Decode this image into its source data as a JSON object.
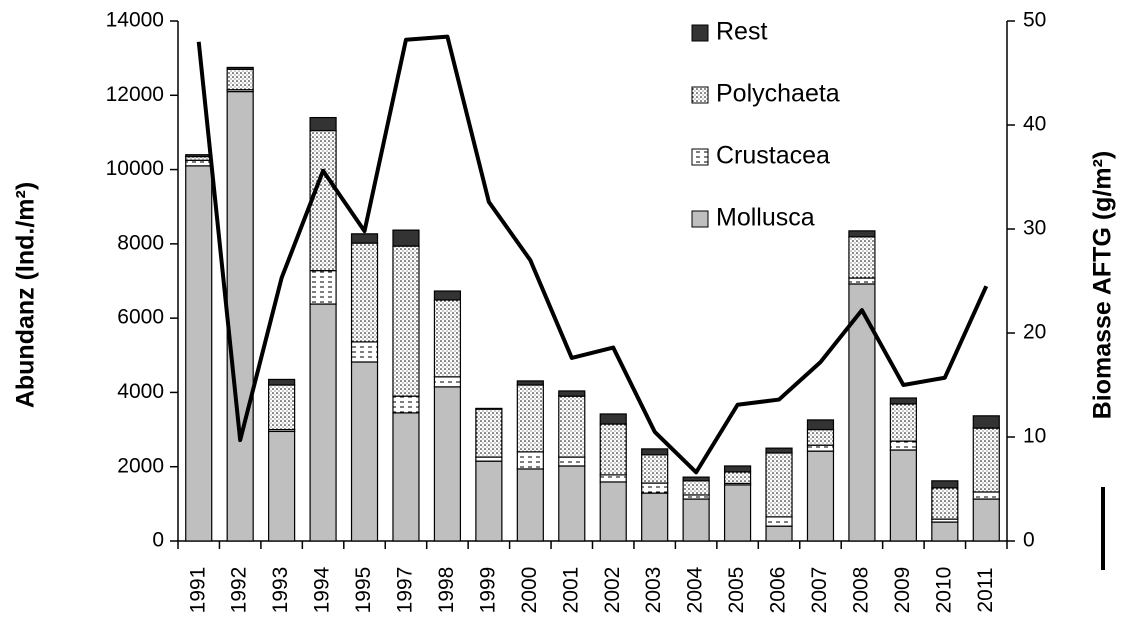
{
  "chart_data": {
    "type": "bar",
    "stacked": true,
    "categories": [
      "1991",
      "1992",
      "1993",
      "1994",
      "1995",
      "1997",
      "1998",
      "1999",
      "2000",
      "2001",
      "2002",
      "2003",
      "2004",
      "2005",
      "2006",
      "2007",
      "2008",
      "2009",
      "2010",
      "2011"
    ],
    "series": [
      {
        "name": "Mollusca",
        "color": "#bfbfbf",
        "pattern": "solid",
        "values": [
          10100,
          12100,
          2950,
          6380,
          4820,
          3450,
          4150,
          2150,
          1940,
          2020,
          1590,
          1290,
          1130,
          1510,
          400,
          2420,
          6920,
          2450,
          510,
          1130
        ]
      },
      {
        "name": "Crustacea",
        "color": "#ffffff",
        "pattern": "dashes",
        "values": [
          150,
          50,
          50,
          900,
          540,
          450,
          270,
          110,
          460,
          240,
          190,
          270,
          110,
          40,
          250,
          160,
          160,
          240,
          80,
          190
        ]
      },
      {
        "name": "Polychaeta",
        "color": "#ffffff",
        "pattern": "dots",
        "values": [
          100,
          550,
          1200,
          3770,
          2660,
          4040,
          2070,
          1290,
          1800,
          1640,
          1370,
          760,
          380,
          310,
          1720,
          420,
          1110,
          1000,
          840,
          1720
        ]
      },
      {
        "name": "Rest",
        "color": "#333333",
        "pattern": "solid",
        "values": [
          50,
          50,
          150,
          350,
          250,
          430,
          240,
          20,
          110,
          140,
          270,
          160,
          100,
          160,
          130,
          260,
          160,
          160,
          190,
          330
        ]
      },
      {
        "type": "line",
        "axis": "y2",
        "color": "#000000",
        "values": [
          48,
          9.7,
          25.3,
          35.6,
          29.8,
          48.2,
          48.5,
          32.6,
          27,
          17.6,
          18.6,
          10.5,
          6.6,
          13.1,
          13.6,
          17.2,
          22.2,
          15,
          15.7,
          24.5
        ]
      }
    ],
    "ylabel": "Abundanz (Ind./m²)",
    "y2label": "Biomasse AFTG (g/m²)",
    "ylim": [
      0,
      14000
    ],
    "yticks": [
      0,
      2000,
      4000,
      6000,
      8000,
      10000,
      12000,
      14000
    ],
    "y2lim": [
      0,
      50
    ],
    "y2ticks": [
      0,
      10,
      20,
      30,
      40,
      50
    ],
    "legend": "top-right",
    "grid": false
  }
}
